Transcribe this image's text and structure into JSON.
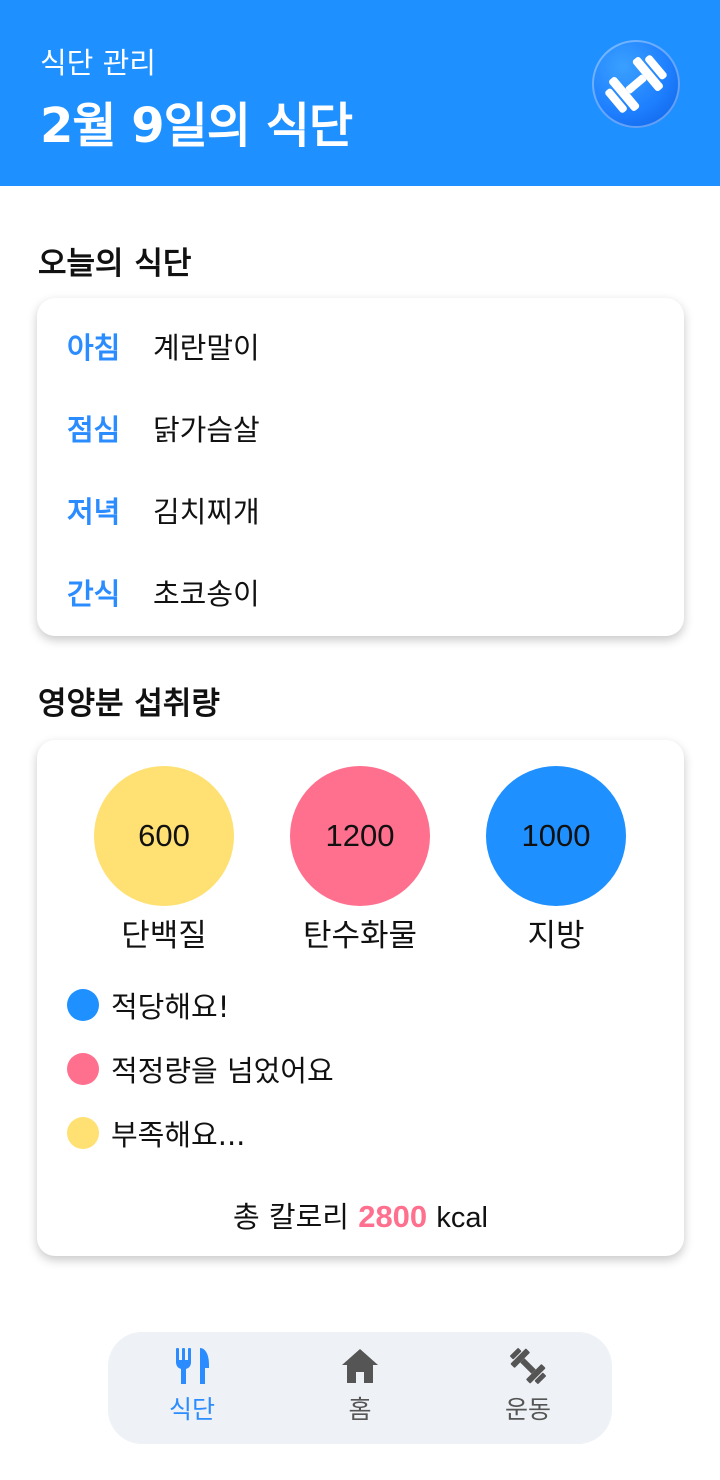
{
  "header": {
    "subtitle": "식단 관리",
    "title": "2월 9일의 식단",
    "logo_icon": "dumbbell-icon",
    "bg_color": "#1e90ff"
  },
  "today_meals": {
    "section_title": "오늘의 식단",
    "items": [
      {
        "label": "아침",
        "value": "계란말이"
      },
      {
        "label": "점심",
        "value": "닭가슴살"
      },
      {
        "label": "저녁",
        "value": "김치찌개"
      },
      {
        "label": "간식",
        "value": "초코송이"
      }
    ]
  },
  "nutrition": {
    "section_title": "영양분 섭취량",
    "nutrients": [
      {
        "value": "600",
        "label": "단백질",
        "color": "#ffe072"
      },
      {
        "value": "1200",
        "label": "탄수화물",
        "color": "#ff6f8e"
      },
      {
        "value": "1000",
        "label": "지방",
        "color": "#1e90ff"
      }
    ],
    "legend": [
      {
        "text": "적당해요!",
        "color": "#1e90ff"
      },
      {
        "text": "적정량을 넘었어요",
        "color": "#ff6f8e"
      },
      {
        "text": "부족해요...",
        "color": "#ffe072"
      }
    ],
    "total": {
      "prefix": "총 칼로리",
      "value": "2800",
      "unit": "kcal"
    }
  },
  "bottom_nav": {
    "items": [
      {
        "label": "식단",
        "icon": "fork-knife-icon",
        "active": true
      },
      {
        "label": "홈",
        "icon": "home-icon",
        "active": false
      },
      {
        "label": "운동",
        "icon": "dumbbell-icon",
        "active": false
      }
    ],
    "active_color": "#2b8cff",
    "inactive_color": "#555555"
  }
}
